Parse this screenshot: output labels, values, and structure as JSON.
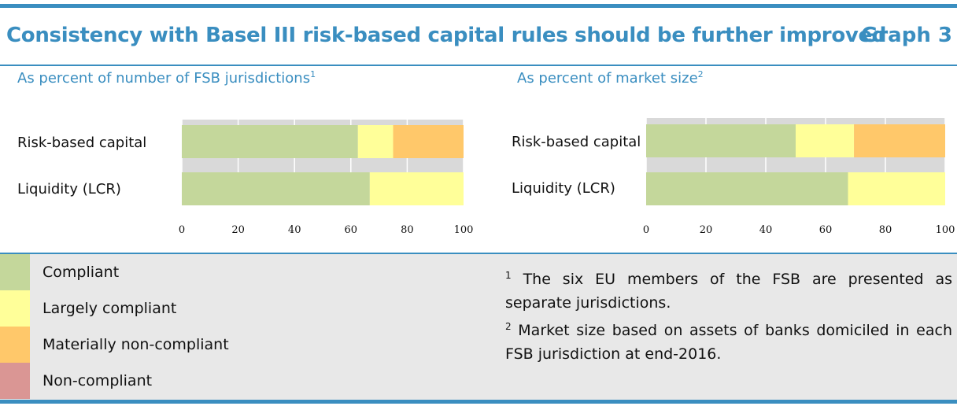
{
  "header": {
    "title": "Consistency with Basel III risk-based capital rules should be further improved",
    "graph_number": "Graph 3"
  },
  "panels": [
    {
      "subtitle": "As percent of number of FSB jurisdictions",
      "subtitle_note": "1"
    },
    {
      "subtitle": "As percent of market size",
      "subtitle_note": "2"
    }
  ],
  "chart_data": [
    {
      "type": "bar",
      "orientation": "horizontal",
      "stacked": true,
      "subtitle": "As percent of number of FSB jurisdictions",
      "categories": [
        "Risk-based capital",
        "Liquidity (LCR)"
      ],
      "series": [
        {
          "name": "Compliant",
          "values": [
            62.5,
            66.7
          ]
        },
        {
          "name": "Largely compliant",
          "values": [
            12.5,
            33.3
          ]
        },
        {
          "name": "Materially non-compliant",
          "values": [
            25.0,
            0
          ]
        },
        {
          "name": "Non-compliant",
          "values": [
            0,
            0
          ]
        }
      ],
      "xlim": [
        0,
        100
      ],
      "xticks": [
        "0",
        "20",
        "40",
        "60",
        "80",
        "100"
      ],
      "grid": true
    },
    {
      "type": "bar",
      "orientation": "horizontal",
      "stacked": true,
      "subtitle": "As percent of market size",
      "categories": [
        "Risk-based capital",
        "Liquidity (LCR)"
      ],
      "series": [
        {
          "name": "Compliant",
          "values": [
            50.0,
            67.5
          ]
        },
        {
          "name": "Largely compliant",
          "values": [
            19.5,
            32.5
          ]
        },
        {
          "name": "Materially non-compliant",
          "values": [
            30.5,
            0
          ]
        },
        {
          "name": "Non-compliant",
          "values": [
            0,
            0
          ]
        }
      ],
      "xlim": [
        0,
        100
      ],
      "xticks": [
        "0",
        "20",
        "40",
        "60",
        "80",
        "100"
      ],
      "grid": true
    }
  ],
  "legend": [
    {
      "label": "Compliant",
      "color": "#c4d79b"
    },
    {
      "label": "Largely compliant",
      "color": "#ffff99"
    },
    {
      "label": "Materially non-compliant",
      "color": "#ffc86a"
    },
    {
      "label": "Non-compliant",
      "color": "#da9694"
    }
  ],
  "notes": [
    {
      "marker": "1",
      "text": "The six EU members of the FSB are presented as separate jurisdictions."
    },
    {
      "marker": "2",
      "text": "Market size based on assets of banks domiciled in each FSB jurisdiction at end-2016."
    }
  ]
}
